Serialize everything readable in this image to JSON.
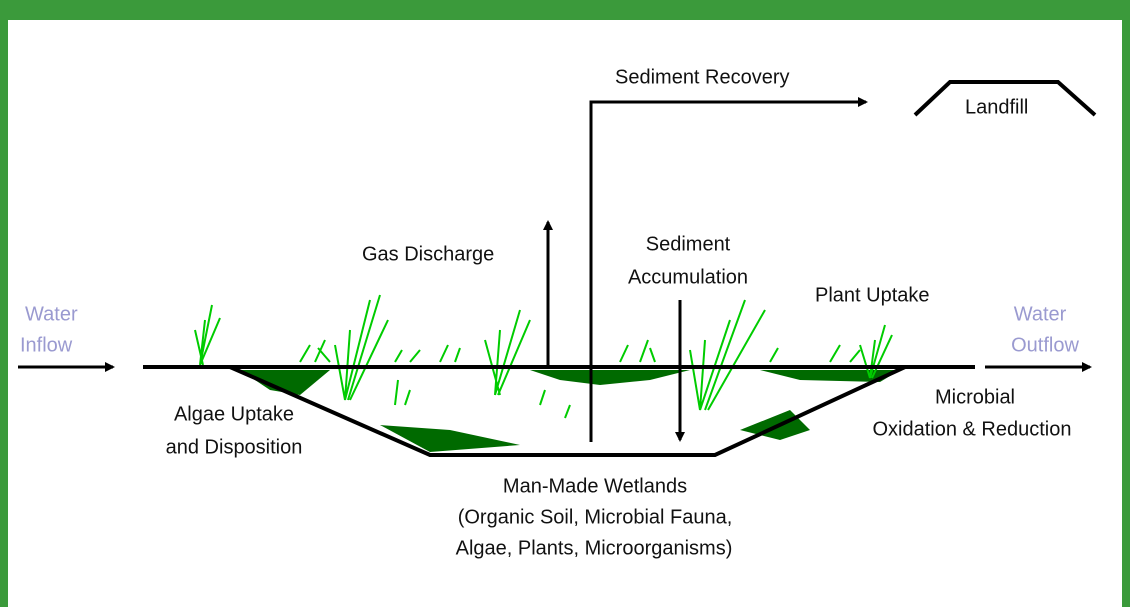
{
  "labels": {
    "sediment_recovery": "Sediment Recovery",
    "landfill": "Landfill",
    "gas_discharge": "Gas Discharge",
    "sediment_accumulation": [
      "Sediment",
      "Accumulation"
    ],
    "plant_uptake": "Plant Uptake",
    "water_inflow": [
      "Water",
      "Inflow"
    ],
    "water_outflow": [
      "Water",
      "Outflow"
    ],
    "algae_uptake": [
      "Algae Uptake",
      "and Disposition"
    ],
    "microbial": [
      "Microbial",
      "Oxidation & Reduction"
    ],
    "wetlands": [
      "Man-Made Wetlands",
      "(Organic Soil, Microbial Fauna,",
      "Algae, Plants, Microorganisms)"
    ]
  }
}
